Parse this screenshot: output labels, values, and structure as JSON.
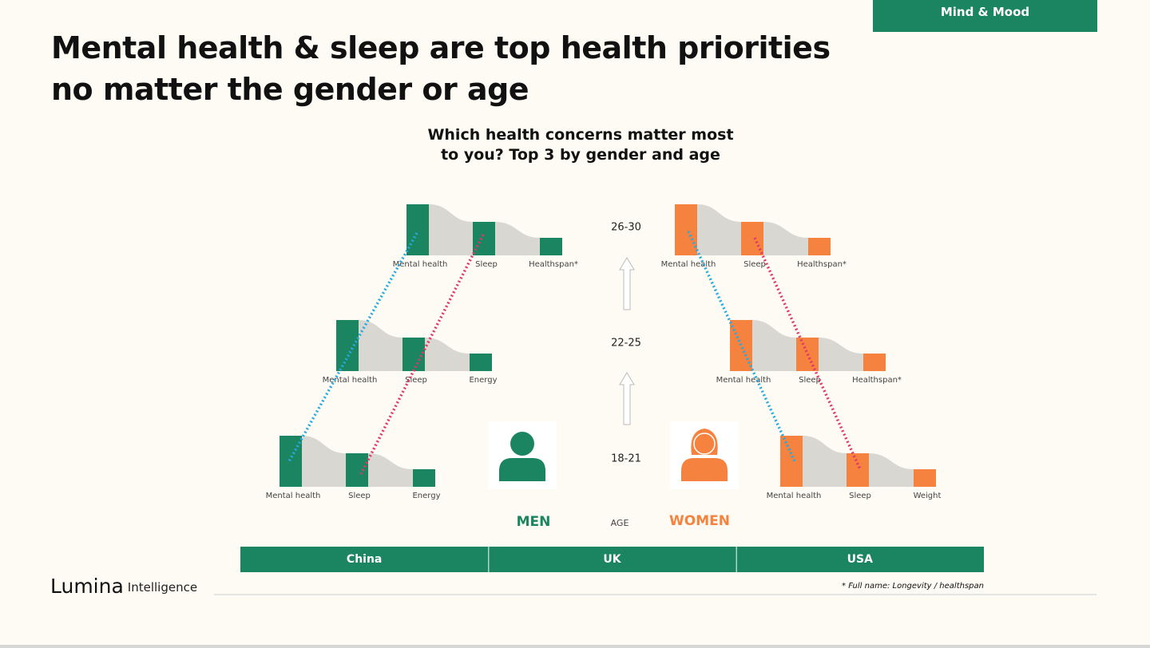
{
  "tag": "Mind & Mood",
  "title": "Mental health & sleep are top health priorities no matter the gender or age",
  "subtitle": "Which health concerns matter most to you? Top 3 by gender and age",
  "ages": [
    "26-30",
    "22-25",
    "18-21"
  ],
  "age_label": "AGE",
  "men": {
    "label": "MEN",
    "groups": [
      [
        "Mental health",
        "Sleep",
        "Healthspan*"
      ],
      [
        "Mental health",
        "Sleep",
        "Energy"
      ],
      [
        "Mental health",
        "Sleep",
        "Energy"
      ]
    ]
  },
  "women": {
    "label": "WOMEN",
    "groups": [
      [
        "Mental health",
        "Sleep",
        "Healthspan*"
      ],
      [
        "Mental health",
        "Sleep",
        "Healthspan*"
      ],
      [
        "Mental health",
        "Sleep",
        "Weight"
      ]
    ]
  },
  "tabs": [
    "China",
    "UK",
    "USA"
  ],
  "footnote": "* Full name: Longevity / healthspan",
  "logo": {
    "brand": "Lumina",
    "suffix": "Intelligence"
  }
}
